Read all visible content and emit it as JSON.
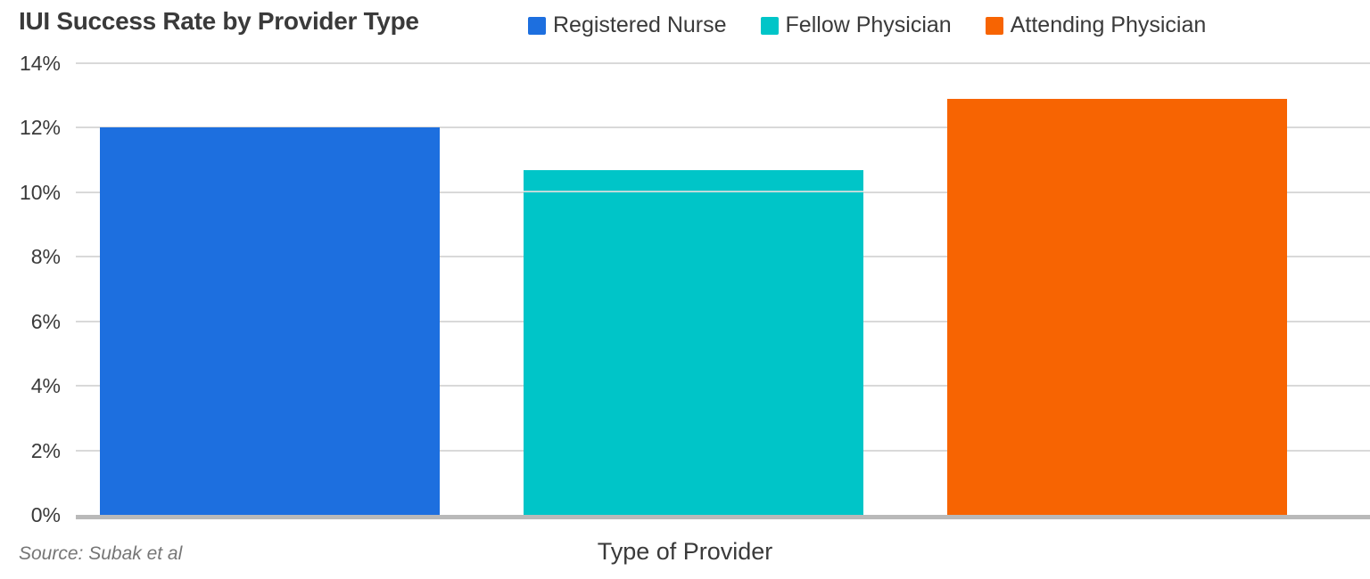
{
  "chart_data": {
    "type": "bar",
    "title": "IUI Success Rate by Provider Type",
    "xlabel": "Type of Provider",
    "ylabel": "",
    "ylim": [
      0,
      14
    ],
    "grid": true,
    "legend_position": "top",
    "categories": [
      "Registered Nurse",
      "Fellow Physician",
      "Attending Physician"
    ],
    "values": [
      12.0,
      10.7,
      12.9
    ],
    "colors": [
      "#1d6fdf",
      "#00c5c8",
      "#f76402"
    ],
    "bar_dividers": [
      null,
      10,
      null
    ],
    "yticks": [
      {
        "value": 0,
        "label": "0%"
      },
      {
        "value": 2,
        "label": "2%"
      },
      {
        "value": 4,
        "label": "4%"
      },
      {
        "value": 6,
        "label": "6%"
      },
      {
        "value": 8,
        "label": "8%"
      },
      {
        "value": 10,
        "label": "10%"
      },
      {
        "value": 12,
        "label": "12%"
      },
      {
        "value": 14,
        "label": "14%"
      }
    ]
  },
  "footer": {
    "source": "Source: Subak et al"
  }
}
